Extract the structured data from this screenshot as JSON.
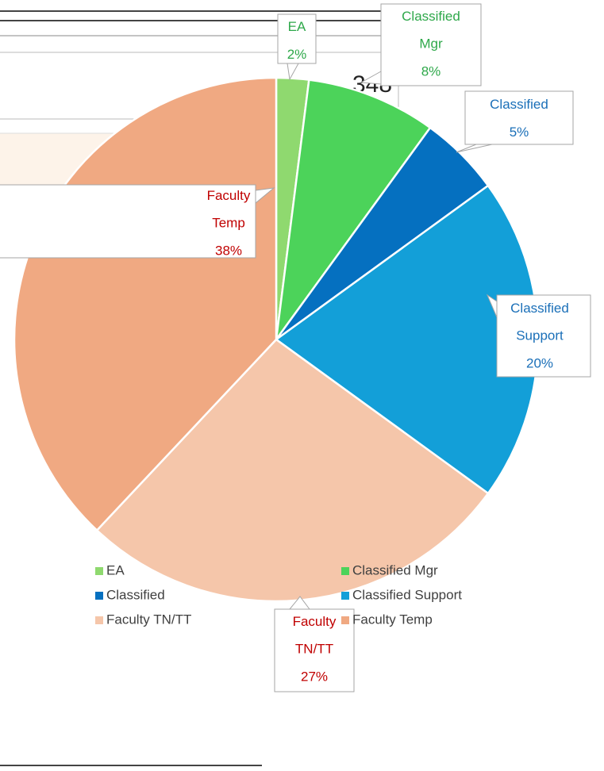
{
  "chart_data": {
    "type": "pie",
    "background_cell": "348",
    "categories": [
      "EA",
      "Classified Mgr",
      "Classified",
      "Classified Support",
      "Faculty TN/TT",
      "Faculty Temp"
    ],
    "values": [
      2,
      8,
      5,
      20,
      27,
      38
    ],
    "value_labels": [
      "2%",
      "8%",
      "5%",
      "20%",
      "27%",
      "38%"
    ],
    "colors": [
      "#8fd96f",
      "#4cd35a",
      "#0570c0",
      "#139fd8",
      "#f5c6aa",
      "#f0a982"
    ],
    "label_colors": [
      "#2ea84a",
      "#2ea84a",
      "#1a6fb8",
      "#1a6fb8",
      "#c00000",
      "#c00000"
    ],
    "legend": "bottom"
  }
}
